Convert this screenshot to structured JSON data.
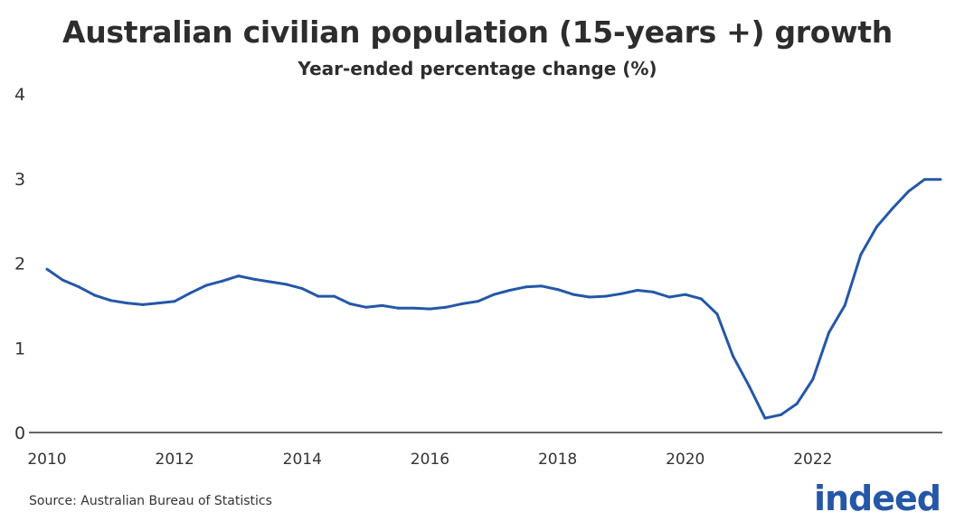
{
  "chart_data": {
    "type": "line",
    "title": "Australian civilian population (15-years +) growth",
    "subtitle": "Year-ended percentage change (%)",
    "xlabel": "",
    "ylabel": "",
    "xlim": [
      2010,
      2024
    ],
    "ylim": [
      0,
      4
    ],
    "x_ticks": [
      "2010",
      "2012",
      "2014",
      "2016",
      "2018",
      "2020",
      "2022"
    ],
    "y_ticks": [
      "0",
      "1",
      "2",
      "3",
      "4"
    ],
    "grid": false,
    "color": "#2557a7",
    "x": [
      2010.0,
      2010.25,
      2010.5,
      2010.75,
      2011.0,
      2011.25,
      2011.5,
      2011.75,
      2012.0,
      2012.25,
      2012.5,
      2012.75,
      2013.0,
      2013.25,
      2013.5,
      2013.75,
      2014.0,
      2014.25,
      2014.5,
      2014.75,
      2015.0,
      2015.25,
      2015.5,
      2015.75,
      2016.0,
      2016.25,
      2016.5,
      2016.75,
      2017.0,
      2017.25,
      2017.5,
      2017.75,
      2018.0,
      2018.25,
      2018.5,
      2018.75,
      2019.0,
      2019.25,
      2019.5,
      2019.75,
      2020.0,
      2020.25,
      2020.5,
      2020.75,
      2021.0,
      2021.25,
      2021.5,
      2021.75,
      2022.0,
      2022.25,
      2022.5,
      2022.75,
      2023.0,
      2023.25,
      2023.5,
      2023.75,
      2024.0
    ],
    "values": [
      1.93,
      1.8,
      1.72,
      1.62,
      1.56,
      1.53,
      1.51,
      1.53,
      1.55,
      1.65,
      1.74,
      1.79,
      1.85,
      1.81,
      1.78,
      1.75,
      1.7,
      1.61,
      1.61,
      1.52,
      1.48,
      1.5,
      1.47,
      1.47,
      1.46,
      1.48,
      1.52,
      1.55,
      1.63,
      1.68,
      1.72,
      1.73,
      1.69,
      1.63,
      1.6,
      1.61,
      1.64,
      1.68,
      1.66,
      1.6,
      1.63,
      1.58,
      1.4,
      0.9,
      0.55,
      0.17,
      0.21,
      0.34,
      0.63,
      1.18,
      1.5,
      2.1,
      2.43,
      2.65,
      2.85,
      2.99,
      2.99
    ]
  },
  "footer": {
    "source": "Source: Australian Bureau of Statistics",
    "logo": "indeed"
  }
}
